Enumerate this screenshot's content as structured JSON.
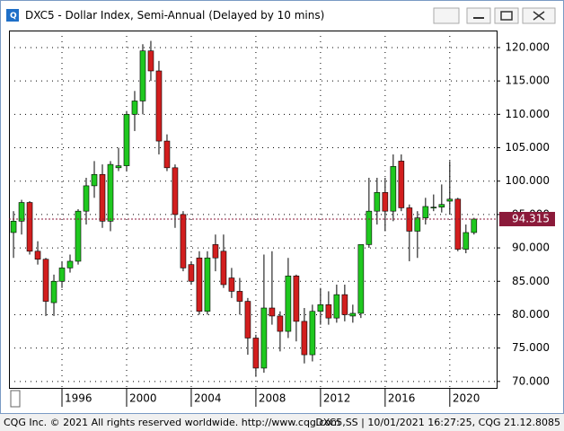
{
  "chart_data": {
    "type": "candlestick",
    "title": "DXC5 - Dollar Index, Semi-Annual (Delayed by 10 mins)",
    "x": [
      1993,
      1993.5,
      1994,
      1994.5,
      1995,
      1995.5,
      1996,
      1996.5,
      1997,
      1997.5,
      1998,
      1998.5,
      1999,
      1999.5,
      2000,
      2000.5,
      2001,
      2001.5,
      2002,
      2002.5,
      2003,
      2003.5,
      2004,
      2004.5,
      2005,
      2005.5,
      2006,
      2006.5,
      2007,
      2007.5,
      2008,
      2008.5,
      2009,
      2009.5,
      2010,
      2010.5,
      2011,
      2011.5,
      2012,
      2012.5,
      2013,
      2013.5,
      2014,
      2014.5,
      2015,
      2015.5,
      2016,
      2016.5,
      2017,
      2017.5,
      2018,
      2018.5,
      2019,
      2019.5,
      2020,
      2020.5,
      2021,
      2021.5
    ],
    "open": [
      92.3,
      94.0,
      96.8,
      89.5,
      88.3,
      81.8,
      85.0,
      87.0,
      88.0,
      95.5,
      99.3,
      101.0,
      94.0,
      102.0,
      102.3,
      110.0,
      112.0,
      119.5,
      116.5,
      106.0,
      102.0,
      95.0,
      87.5,
      88.5,
      80.5,
      90.5,
      89.5,
      85.5,
      83.5,
      82.0,
      76.5,
      72.0,
      81.0,
      79.8,
      77.5,
      85.8,
      79.0,
      74.0,
      80.5,
      81.5,
      79.5,
      83.0,
      79.8,
      80.2,
      90.5,
      95.5,
      98.3,
      95.5,
      103.0,
      96.0,
      92.5,
      94.5,
      96.0,
      96.1,
      97.0,
      97.3,
      89.8,
      92.3
    ],
    "high": [
      95.5,
      97.2,
      97.0,
      91.0,
      88.5,
      86.0,
      88.0,
      89.0,
      95.8,
      100.5,
      103.0,
      102.5,
      103.0,
      105.0,
      110.5,
      113.5,
      120.5,
      121.0,
      118.0,
      107.0,
      102.5,
      95.5,
      88.0,
      89.5,
      89.5,
      92.0,
      92.0,
      87.0,
      85.5,
      82.5,
      77.0,
      89.0,
      89.5,
      80.5,
      88.5,
      86.0,
      81.0,
      81.5,
      84.0,
      83.5,
      84.5,
      84.5,
      81.5,
      90.5,
      100.5,
      100.5,
      100.5,
      104.0,
      104.0,
      96.5,
      95.5,
      97.5,
      98.0,
      99.5,
      103.0,
      97.5,
      93.5,
      94.5
    ],
    "low": [
      88.5,
      92.0,
      89.0,
      87.5,
      79.8,
      79.8,
      84.0,
      86.3,
      87.5,
      93.5,
      97.5,
      93.0,
      92.5,
      101.5,
      101.5,
      107.5,
      110.0,
      115.0,
      104.0,
      101.5,
      93.0,
      86.5,
      84.5,
      80.0,
      80.0,
      86.5,
      84.0,
      82.5,
      80.0,
      74.0,
      70.7,
      71.3,
      78.5,
      74.5,
      76.5,
      76.0,
      72.7,
      73.0,
      78.5,
      78.5,
      78.8,
      79.0,
      78.8,
      79.5,
      90.0,
      93.5,
      92.5,
      94.0,
      95.5,
      88.0,
      88.5,
      93.5,
      95.5,
      95.3,
      95.0,
      89.5,
      89.2,
      92.0
    ],
    "close": [
      94.0,
      96.8,
      89.5,
      88.3,
      82.0,
      85.0,
      87.0,
      88.0,
      95.5,
      99.3,
      101.0,
      94.0,
      102.5,
      102.3,
      110.0,
      112.0,
      119.5,
      116.5,
      106.0,
      102.0,
      95.0,
      87.0,
      85.0,
      80.5,
      88.5,
      88.5,
      84.5,
      83.5,
      82.0,
      76.5,
      72.0,
      81.0,
      79.8,
      77.5,
      85.8,
      79.0,
      74.0,
      80.5,
      81.5,
      79.5,
      83.0,
      80.0,
      80.2,
      90.5,
      95.5,
      98.3,
      95.5,
      102.2,
      96.0,
      92.5,
      94.5,
      96.2,
      96.1,
      96.5,
      97.3,
      89.8,
      92.3,
      94.315
    ],
    "up_color": "#1fc81f",
    "down_color": "#d21e1e",
    "xlim": [
      1992.72,
      2022.9
    ],
    "xticks": [
      1996,
      2000,
      2004,
      2008,
      2012,
      2016,
      2020
    ],
    "ylim": [
      68.9,
      122.55
    ],
    "yticks": [
      {
        "value": 70,
        "label": "70.000"
      },
      {
        "value": 75,
        "label": "75.000"
      },
      {
        "value": 80,
        "label": "80.000"
      },
      {
        "value": 85,
        "label": "85.000"
      },
      {
        "value": 90,
        "label": "90.000"
      },
      {
        "value": 95,
        "label": "95.000"
      },
      {
        "value": 100,
        "label": "100.000"
      },
      {
        "value": 105,
        "label": "105.000"
      },
      {
        "value": 110,
        "label": "110.000"
      },
      {
        "value": 115,
        "label": "115.000"
      },
      {
        "value": 120,
        "label": "120.000"
      }
    ],
    "grid": true,
    "last_price": 94.315
  },
  "status_bar": {
    "left": "CQG Inc. © 2021 All rights reserved worldwide. http://www.cqg.com",
    "right": "DXC5,SS | 10/01/2021 16:27:25, CQG 21.12.8085"
  }
}
